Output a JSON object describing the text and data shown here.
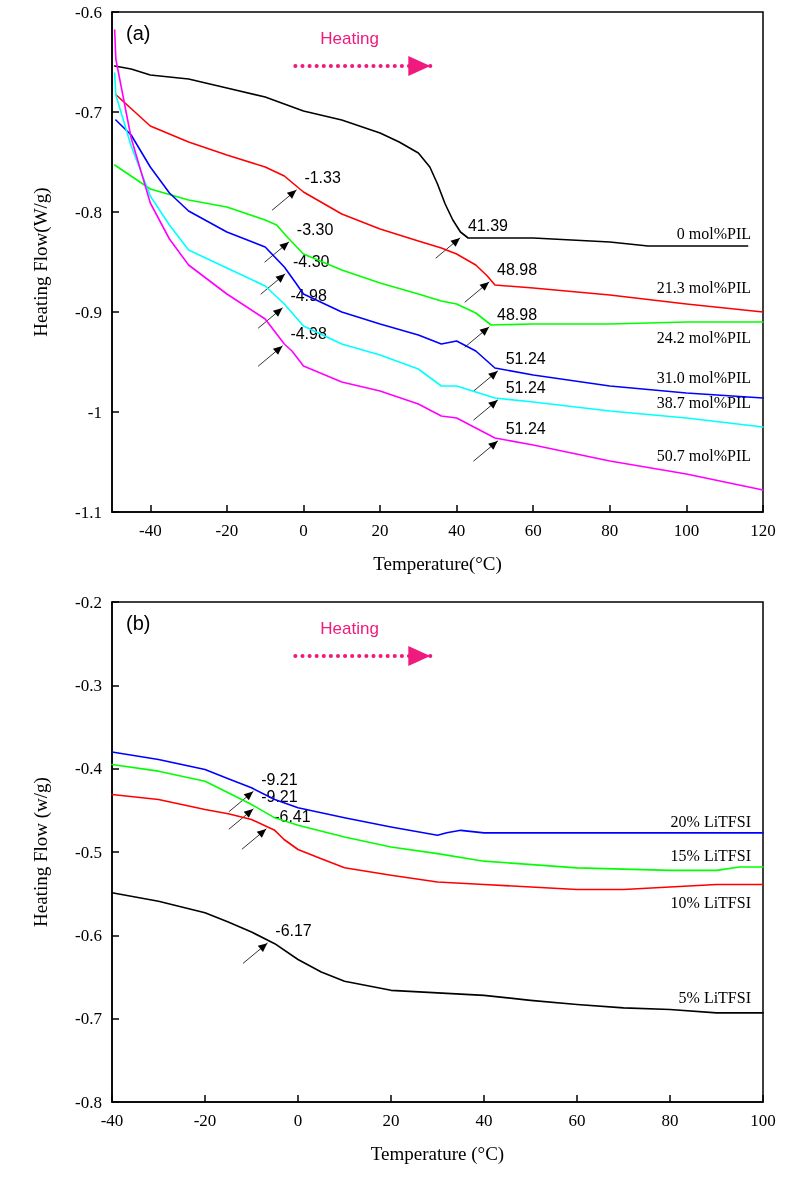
{
  "chart_data": [
    {
      "type": "line",
      "xlabel": "Temperature(°C)",
      "ylabel": "Heating Flow(W/g)",
      "xlim": [
        -50,
        120
      ],
      "xticks": [
        -40,
        -20,
        0,
        20,
        40,
        60,
        80,
        100,
        120
      ],
      "ylim": [
        -1.1,
        -0.6
      ],
      "yticks": [
        -1.1,
        -1.0,
        -0.9,
        -0.8,
        -0.7,
        -0.6
      ],
      "grid": false,
      "legend": false,
      "marker": "none",
      "annotations": [
        "(a)",
        "Heating",
        {
          "text": "-1.33",
          "x": -1.33,
          "y": -0.776
        },
        {
          "text": "-3.30",
          "x": -3.3,
          "y": -0.828
        },
        {
          "text": "-4.30",
          "x": -4.3,
          "y": -0.86
        },
        {
          "text": "-4.98",
          "x": -4.98,
          "y": -0.894
        },
        {
          "text": "-4.98",
          "x": -4.98,
          "y": -0.932
        },
        {
          "text": "41.39",
          "x": 41.39,
          "y": -0.824
        },
        {
          "text": "48.98",
          "x": 48.98,
          "y": -0.868
        },
        {
          "text": "48.98",
          "x": 48.98,
          "y": -0.913
        },
        {
          "text": "51.24",
          "x": 51.24,
          "y": -0.957
        },
        {
          "text": "51.24",
          "x": 51.24,
          "y": -0.986
        },
        {
          "text": "51.24",
          "x": 51.24,
          "y": -1.027
        }
      ],
      "series": [
        {
          "name": "0 mol%PIL",
          "color": "#000000",
          "x": [
            -49.3,
            -45,
            -40,
            -30,
            -20,
            -10,
            0,
            10,
            20,
            25,
            30,
            33,
            35,
            37,
            39,
            41,
            43,
            60,
            80,
            90,
            116
          ],
          "values": [
            -0.654,
            -0.657,
            -0.663,
            -0.667,
            -0.676,
            -0.685,
            -0.699,
            -0.708,
            -0.721,
            -0.73,
            -0.741,
            -0.755,
            -0.772,
            -0.792,
            -0.808,
            -0.82,
            -0.826,
            -0.826,
            -0.83,
            -0.834,
            -0.834
          ]
        },
        {
          "name": "21.3  mol%PIL",
          "color": "#ff0000",
          "x": [
            -48.9,
            -40,
            -30,
            -20,
            -10,
            -5,
            0,
            10,
            20,
            30,
            36,
            40,
            45,
            48,
            50,
            60,
            80,
            100,
            120
          ],
          "values": [
            -0.683,
            -0.714,
            -0.73,
            -0.743,
            -0.755,
            -0.764,
            -0.78,
            -0.802,
            -0.817,
            -0.829,
            -0.836,
            -0.842,
            -0.853,
            -0.864,
            -0.873,
            -0.876,
            -0.883,
            -0.892,
            -0.9
          ]
        },
        {
          "name": "24.2 mol%PIL",
          "color": "#00ff00",
          "x": [
            -49.3,
            -40,
            -30,
            -20,
            -10,
            -7,
            -4,
            0,
            10,
            20,
            30,
            36,
            40,
            45,
            49,
            60,
            80,
            100,
            120
          ],
          "values": [
            -0.753,
            -0.777,
            -0.788,
            -0.795,
            -0.808,
            -0.813,
            -0.826,
            -0.842,
            -0.858,
            -0.871,
            -0.882,
            -0.889,
            -0.892,
            -0.901,
            -0.913,
            -0.912,
            -0.912,
            -0.91,
            -0.91
          ]
        },
        {
          "name": "31.0 mol%PIL",
          "color": "#0000ff",
          "x": [
            -49,
            -45,
            -40,
            -35,
            -30,
            -20,
            -10,
            -5,
            -2,
            0,
            10,
            20,
            30,
            36,
            40,
            45,
            50,
            60,
            80,
            100,
            120
          ],
          "values": [
            -0.708,
            -0.723,
            -0.755,
            -0.781,
            -0.799,
            -0.82,
            -0.835,
            -0.855,
            -0.871,
            -0.882,
            -0.9,
            -0.912,
            -0.923,
            -0.932,
            -0.929,
            -0.939,
            -0.956,
            -0.963,
            -0.974,
            -0.981,
            -0.986
          ]
        },
        {
          "name": "38.7 mol%PIL",
          "color": "#00ffff",
          "x": [
            -49.3,
            -49,
            -45,
            -40,
            -35,
            -30,
            -20,
            -10,
            -5,
            0,
            10,
            20,
            30,
            36,
            40,
            50,
            60,
            80,
            100,
            120
          ],
          "values": [
            -0.661,
            -0.683,
            -0.734,
            -0.784,
            -0.813,
            -0.838,
            -0.856,
            -0.874,
            -0.892,
            -0.914,
            -0.932,
            -0.943,
            -0.957,
            -0.974,
            -0.974,
            -0.986,
            -0.99,
            -0.999,
            -1.006,
            -1.015
          ]
        },
        {
          "name": "50.7 mol%PIL",
          "color": "#ff00ff",
          "x": [
            -49.3,
            -49,
            -45,
            -40,
            -35,
            -30,
            -20,
            -10,
            -5,
            -3,
            0,
            10,
            20,
            30,
            36,
            40,
            50,
            60,
            80,
            100,
            120
          ],
          "values": [
            -0.618,
            -0.647,
            -0.726,
            -0.791,
            -0.827,
            -0.853,
            -0.882,
            -0.907,
            -0.932,
            -0.939,
            -0.954,
            -0.97,
            -0.979,
            -0.992,
            -1.004,
            -1.006,
            -1.026,
            -1.033,
            -1.049,
            -1.062,
            -1.078
          ]
        }
      ]
    },
    {
      "type": "line",
      "xlabel": "Temperature (°C)",
      "ylabel": "Heating Flow (w/g)",
      "xlim": [
        -40,
        100
      ],
      "xticks": [
        -40,
        -20,
        0,
        20,
        40,
        60,
        80,
        100
      ],
      "ylim": [
        -0.8,
        -0.2
      ],
      "yticks": [
        -0.8,
        -0.7,
        -0.6,
        -0.5,
        -0.4,
        -0.3,
        -0.2
      ],
      "grid": false,
      "legend": false,
      "marker": "none",
      "annotations": [
        "(b)",
        "Heating",
        {
          "text": "-9.21",
          "x": -9.21,
          "y": -0.425
        },
        {
          "text": "-9.21",
          "x": -9.21,
          "y": -0.446
        },
        {
          "text": "-6.41",
          "x": -6.41,
          "y": -0.47
        },
        {
          "text": "-6.17",
          "x": -6.17,
          "y": -0.607
        }
      ],
      "series": [
        {
          "name": "20% LiTFSI",
          "color": "#0000ff",
          "x": [
            -40,
            -30,
            -20,
            -15,
            -10,
            -5,
            0,
            10,
            20,
            30,
            32,
            35,
            40,
            60,
            100
          ],
          "values": [
            -0.38,
            -0.389,
            -0.401,
            -0.412,
            -0.423,
            -0.437,
            -0.447,
            -0.459,
            -0.47,
            -0.48,
            -0.477,
            -0.474,
            -0.477,
            -0.477,
            -0.477
          ]
        },
        {
          "name": "15% LiTFSI",
          "color": "#00ff00",
          "x": [
            -40,
            -30,
            -20,
            -15,
            -10,
            -5,
            0,
            10,
            20,
            30,
            40,
            60,
            80,
            90,
            95,
            100
          ],
          "values": [
            -0.395,
            -0.403,
            -0.415,
            -0.429,
            -0.443,
            -0.459,
            -0.468,
            -0.482,
            -0.494,
            -0.502,
            -0.511,
            -0.519,
            -0.522,
            -0.522,
            -0.518,
            -0.518
          ]
        },
        {
          "name": "10% LiTFSI",
          "color": "#ff0000",
          "x": [
            -40,
            -30,
            -20,
            -15,
            -10,
            -5,
            -3,
            0,
            5,
            10,
            20,
            30,
            40,
            60,
            70,
            80,
            90,
            100
          ],
          "values": [
            -0.431,
            -0.437,
            -0.449,
            -0.454,
            -0.461,
            -0.474,
            -0.485,
            -0.497,
            -0.508,
            -0.519,
            -0.528,
            -0.536,
            -0.539,
            -0.545,
            -0.545,
            -0.542,
            -0.539,
            -0.539
          ]
        },
        {
          "name": "5% LiTFSI",
          "color": "#000000",
          "x": [
            -40,
            -30,
            -20,
            -15,
            -10,
            -5,
            0,
            5,
            10,
            20,
            30,
            40,
            50,
            60,
            70,
            80,
            90,
            100
          ],
          "values": [
            -0.549,
            -0.559,
            -0.573,
            -0.584,
            -0.596,
            -0.61,
            -0.629,
            -0.644,
            -0.655,
            -0.666,
            -0.669,
            -0.672,
            -0.678,
            -0.683,
            -0.687,
            -0.689,
            -0.693,
            -0.693
          ]
        }
      ]
    }
  ]
}
